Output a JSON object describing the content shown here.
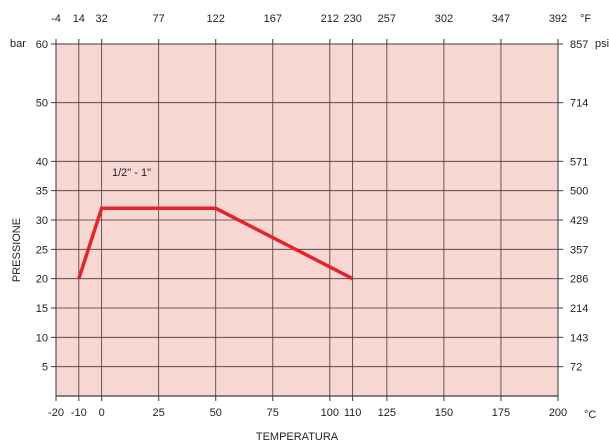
{
  "chart_data": {
    "type": "line",
    "xlabel": "TEMPERATURA",
    "ylabel": "PRESSIONE",
    "x_unit": "°C",
    "x2_unit": "°F",
    "y_unit": "bar",
    "y2_unit": "psi",
    "xlim": [
      -20,
      200
    ],
    "ylim": [
      0,
      60
    ],
    "x_ticks": [
      -20,
      -10,
      0,
      25,
      50,
      75,
      100,
      110,
      125,
      150,
      175,
      200
    ],
    "x_tick_labels": [
      "-20",
      "-10",
      "0",
      "25",
      "50",
      "75",
      "100",
      "110",
      "125",
      "150",
      "175",
      "200"
    ],
    "x2_ticks": [
      -20,
      -10,
      0,
      25,
      50,
      75,
      100,
      110,
      125,
      150,
      175,
      200
    ],
    "x2_tick_labels": [
      "-4",
      "14",
      "32",
      "77",
      "122",
      "167",
      "212",
      "230",
      "257",
      "302",
      "347",
      "392"
    ],
    "y_ticks": [
      5,
      10,
      15,
      20,
      25,
      30,
      35,
      40,
      50,
      60
    ],
    "y_tick_labels": [
      "5",
      "10",
      "15",
      "20",
      "25",
      "30",
      "35",
      "40",
      "50",
      "60"
    ],
    "y2_ticks": [
      5,
      10,
      15,
      20,
      25,
      30,
      35,
      40,
      50,
      60
    ],
    "y2_tick_labels": [
      "72",
      "143",
      "214",
      "286",
      "357",
      "429",
      "500",
      "571",
      "714",
      "857"
    ],
    "grid": true,
    "series": [
      {
        "name": "1/2\" - 1\"",
        "x": [
          -10,
          0,
          50,
          110
        ],
        "y": [
          20,
          32,
          32,
          20
        ]
      }
    ],
    "colors": {
      "plot_background": "#f8d7d2",
      "series": "#e3242b",
      "grid": "#3a3a3a"
    }
  }
}
